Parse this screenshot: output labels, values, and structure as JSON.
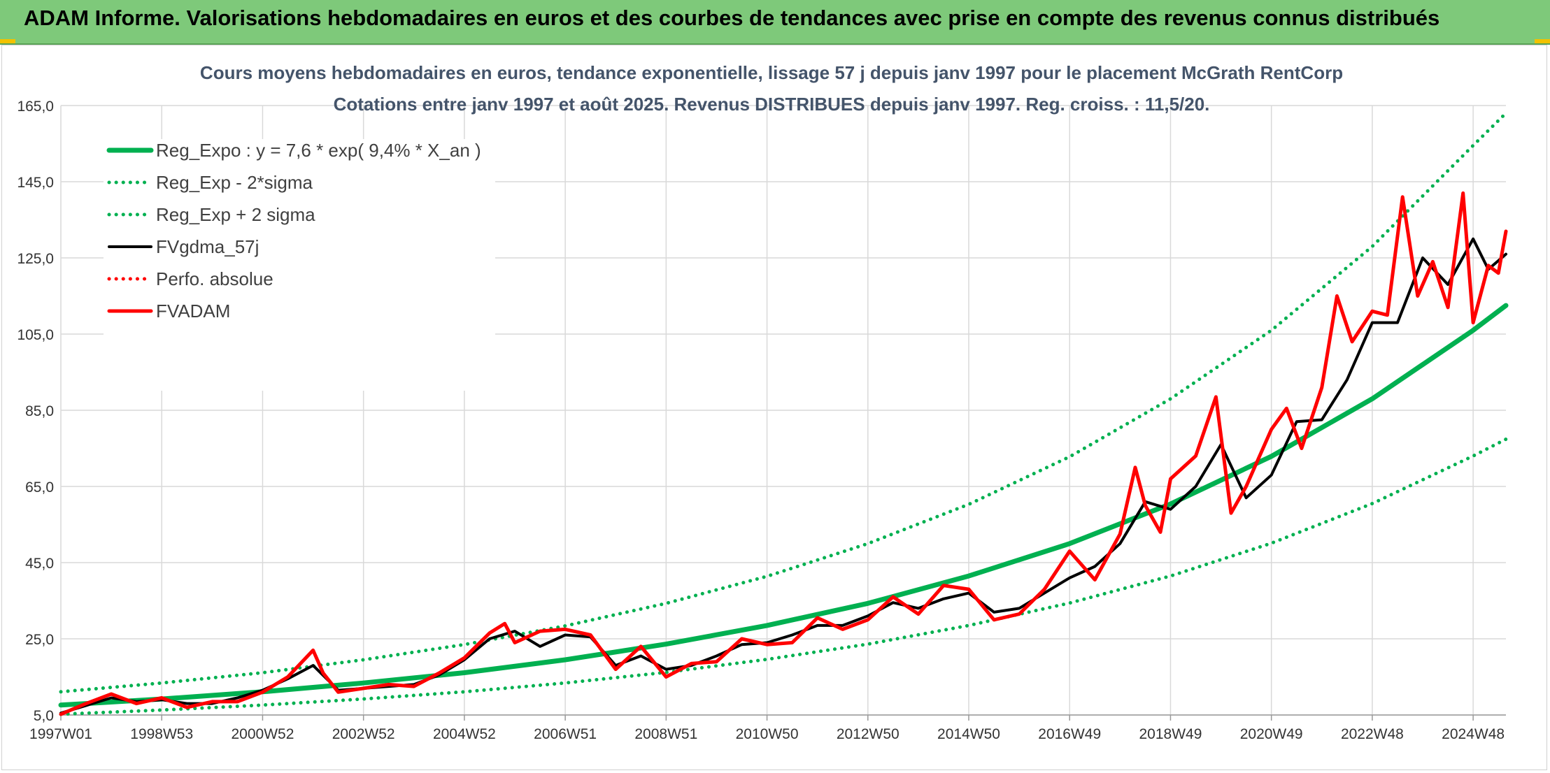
{
  "header": {
    "title": "ADAM Informe. Valorisations hebdomadaires en euros et des courbes de tendances avec prise en compte des revenus connus distribués"
  },
  "colors": {
    "header_bg": "#7ec97a",
    "green": "#00b050",
    "red": "#ff0000",
    "black": "#000000",
    "grid": "#d9d9d9",
    "title_text": "#44546a"
  },
  "chart_data": {
    "type": "line",
    "title": "Cours moyens hebdomadaires en euros, tendance exponentielle, lissage 57 j depuis janv 1997 pour le placement McGrath RentCorp",
    "subtitle": "Cotations entre janv 1997 et août 2025. Revenus DISTRIBUES depuis janv 1997. Reg. croiss. : 11,5/20.",
    "xlabel": "",
    "ylabel": "",
    "ylim": [
      5,
      165
    ],
    "xlim": [
      1997.0,
      2025.65
    ],
    "grid": true,
    "legend_position": "top-left",
    "yticks": [
      "5,0",
      "25,0",
      "45,0",
      "65,0",
      "85,0",
      "105,0",
      "125,0",
      "145,0",
      "165,0"
    ],
    "ytick_values": [
      5,
      25,
      45,
      65,
      85,
      105,
      125,
      145,
      165
    ],
    "xticks": [
      "1997W01",
      "1998W53",
      "2000W52",
      "2002W52",
      "2004W52",
      "2006W51",
      "2008W51",
      "2010W50",
      "2012W50",
      "2014W50",
      "2016W49",
      "2018W49",
      "2020W49",
      "2022W48",
      "2024W48"
    ],
    "xtick_values": [
      1997.0,
      1999.0,
      2001.0,
      2003.0,
      2005.0,
      2007.0,
      2009.0,
      2011.0,
      2013.0,
      2015.0,
      2017.0,
      2019.0,
      2021.0,
      2023.0,
      2025.0
    ],
    "series": [
      {
        "name": "Reg_Expo : y = 7,6 * exp( 9,4% *  X_an )",
        "style": "solid-thick",
        "color": "#00b050",
        "x": [
          1997.0,
          1999.0,
          2001.0,
          2003.0,
          2005.0,
          2007.0,
          2009.0,
          2011.0,
          2013.0,
          2015.0,
          2017.0,
          2019.0,
          2021.0,
          2023.0,
          2025.0,
          2025.65
        ],
        "y": [
          7.6,
          9.2,
          11.1,
          13.4,
          16.1,
          19.5,
          23.6,
          28.5,
          34.3,
          41.5,
          50.0,
          60.4,
          72.9,
          88.0,
          106.0,
          112.5
        ]
      },
      {
        "name": "Reg_Exp - 2*sigma",
        "style": "dotted",
        "color": "#00b050",
        "x": [
          1997.0,
          1999.0,
          2001.0,
          2003.0,
          2005.0,
          2007.0,
          2009.0,
          2011.0,
          2013.0,
          2015.0,
          2017.0,
          2019.0,
          2021.0,
          2023.0,
          2025.0,
          2025.65
        ],
        "y": [
          5.2,
          6.3,
          7.6,
          9.2,
          11.1,
          13.4,
          16.2,
          19.6,
          23.6,
          28.5,
          34.4,
          41.5,
          50.1,
          60.5,
          73.0,
          77.4
        ]
      },
      {
        "name": "Reg_Exp + 2 sigma",
        "style": "dotted",
        "color": "#00b050",
        "x": [
          1997.0,
          1999.0,
          2001.0,
          2003.0,
          2005.0,
          2007.0,
          2009.0,
          2011.0,
          2013.0,
          2015.0,
          2017.0,
          2019.0,
          2021.0,
          2023.0,
          2025.0,
          2025.65
        ],
        "y": [
          11.1,
          13.4,
          16.1,
          19.5,
          23.5,
          28.4,
          34.3,
          41.4,
          50.0,
          60.3,
          72.8,
          88.0,
          106.0,
          128.0,
          154.5,
          163.0
        ]
      },
      {
        "name": "FVgdma_57j",
        "style": "solid",
        "color": "#000000",
        "x": [
          1997.0,
          1997.5,
          1998.0,
          1998.5,
          1999.0,
          1999.5,
          2000.0,
          2000.5,
          2001.0,
          2001.5,
          2002.0,
          2002.5,
          2003.0,
          2003.5,
          2004.0,
          2004.5,
          2005.0,
          2005.5,
          2006.0,
          2006.5,
          2007.0,
          2007.5,
          2008.0,
          2008.5,
          2009.0,
          2009.5,
          2010.0,
          2010.5,
          2011.0,
          2011.5,
          2012.0,
          2012.5,
          2013.0,
          2013.5,
          2014.0,
          2014.5,
          2015.0,
          2015.5,
          2016.0,
          2016.5,
          2017.0,
          2017.5,
          2018.0,
          2018.5,
          2019.0,
          2019.5,
          2020.0,
          2020.5,
          2021.0,
          2021.5,
          2022.0,
          2022.5,
          2023.0,
          2023.5,
          2024.0,
          2024.5,
          2025.0,
          2025.3,
          2025.65
        ],
        "y": [
          5.5,
          7.5,
          9.5,
          8.5,
          9.0,
          8.0,
          8.0,
          9.5,
          11.5,
          14.5,
          18.0,
          11.5,
          12.0,
          12.5,
          13.0,
          15.5,
          19.5,
          25.0,
          27.0,
          23.0,
          26.0,
          25.5,
          18.0,
          20.5,
          17.0,
          18.0,
          20.5,
          23.5,
          24.0,
          26.0,
          28.5,
          28.5,
          31.0,
          34.5,
          33.0,
          35.5,
          37.0,
          32.0,
          33.0,
          37.0,
          41.0,
          44.0,
          50.0,
          61.0,
          59.0,
          65.0,
          76.0,
          62.0,
          68.0,
          82.0,
          82.5,
          93.0,
          108.0,
          108.0,
          125.0,
          118.0,
          130.0,
          122.0,
          126.0
        ]
      },
      {
        "name": "Perfo. absolue",
        "style": "dotted",
        "color": "#ff0000",
        "x": [],
        "y": []
      },
      {
        "name": "FVADAM",
        "style": "solid-thick",
        "color": "#ff0000",
        "x": [
          1997.0,
          1997.5,
          1998.0,
          1998.5,
          1999.0,
          1999.5,
          2000.0,
          2000.5,
          2001.0,
          2001.5,
          2002.0,
          2002.2,
          2002.5,
          2003.0,
          2003.5,
          2004.0,
          2004.5,
          2005.0,
          2005.5,
          2005.8,
          2006.0,
          2006.5,
          2007.0,
          2007.5,
          2008.0,
          2008.5,
          2009.0,
          2009.5,
          2010.0,
          2010.5,
          2011.0,
          2011.5,
          2012.0,
          2012.5,
          2013.0,
          2013.5,
          2014.0,
          2014.5,
          2015.0,
          2015.5,
          2016.0,
          2016.5,
          2017.0,
          2017.5,
          2018.0,
          2018.3,
          2018.5,
          2018.8,
          2019.0,
          2019.5,
          2019.9,
          2020.2,
          2020.5,
          2021.0,
          2021.3,
          2021.6,
          2022.0,
          2022.3,
          2022.6,
          2023.0,
          2023.3,
          2023.6,
          2023.9,
          2024.2,
          2024.5,
          2024.8,
          2025.0,
          2025.3,
          2025.5,
          2025.65
        ],
        "y": [
          5.2,
          8.0,
          10.5,
          8.0,
          9.5,
          7.0,
          8.5,
          8.5,
          11.0,
          15.0,
          22.0,
          16.0,
          11.0,
          12.0,
          13.0,
          12.5,
          16.0,
          20.0,
          26.5,
          29.0,
          24.0,
          27.0,
          27.5,
          26.0,
          17.0,
          23.0,
          15.0,
          18.5,
          19.0,
          25.0,
          23.5,
          24.0,
          30.5,
          27.5,
          30.0,
          36.0,
          31.5,
          39.0,
          38.0,
          30.0,
          31.5,
          38.0,
          48.0,
          40.5,
          52.5,
          70.0,
          60.0,
          53.0,
          67.0,
          73.0,
          88.5,
          58.0,
          65.0,
          80.0,
          85.5,
          75.0,
          91.0,
          115.0,
          103.0,
          111.0,
          110.0,
          141.0,
          115.0,
          124.0,
          112.0,
          142.0,
          108.0,
          123.0,
          121.0,
          132.0
        ]
      }
    ]
  }
}
